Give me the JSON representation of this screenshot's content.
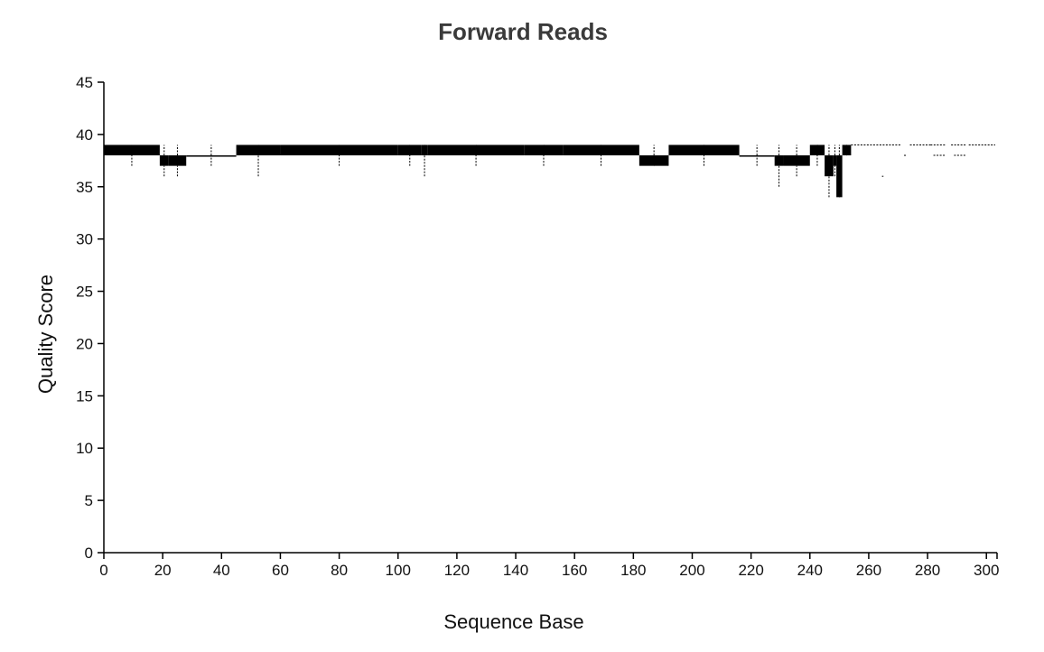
{
  "chart_data": {
    "type": "box",
    "title": "Forward Reads",
    "xlabel": "Sequence Base",
    "ylabel": "Quality Score",
    "xlim": [
      0,
      303
    ],
    "ylim": [
      0,
      45
    ],
    "xticks": [
      0,
      20,
      40,
      60,
      80,
      100,
      120,
      140,
      160,
      180,
      200,
      220,
      240,
      260,
      280,
      300
    ],
    "yticks": [
      0,
      5,
      10,
      15,
      20,
      25,
      30,
      35,
      40,
      45
    ],
    "grid": false,
    "legend": "none",
    "colors": {
      "mark": "#000000",
      "title": "#3a3a3a"
    },
    "series": [
      {
        "x_start": 0,
        "x_end": 19,
        "whisker_low": 37,
        "q1": 38,
        "q3": 39,
        "whisker_high": 39
      },
      {
        "x_start": 19,
        "x_end": 22,
        "whisker_low": 36,
        "q1": 37,
        "q3": 38,
        "whisker_high": 39
      },
      {
        "x_start": 22,
        "x_end": 28,
        "whisker_low": 36,
        "q1": 37,
        "q3": 38,
        "whisker_high": 39
      },
      {
        "x_start": 28,
        "x_end": 45,
        "whisker_low": 37,
        "q1": 38,
        "q3": 38,
        "whisker_high": 39
      },
      {
        "x_start": 45,
        "x_end": 60,
        "whisker_low": 36,
        "q1": 38,
        "q3": 39,
        "whisker_high": 39
      },
      {
        "x_start": 60,
        "x_end": 100,
        "whisker_low": 37,
        "q1": 38,
        "q3": 39,
        "whisker_high": 39
      },
      {
        "x_start": 100,
        "x_end": 108,
        "whisker_low": 37,
        "q1": 38,
        "q3": 39,
        "whisker_high": 39
      },
      {
        "x_start": 108,
        "x_end": 110,
        "whisker_low": 36,
        "q1": 38,
        "q3": 39,
        "whisker_high": 39
      },
      {
        "x_start": 110,
        "x_end": 143,
        "whisker_low": 37,
        "q1": 38,
        "q3": 39,
        "whisker_high": 39
      },
      {
        "x_start": 143,
        "x_end": 156,
        "whisker_low": 37,
        "q1": 38,
        "q3": 39,
        "whisker_high": 39
      },
      {
        "x_start": 156,
        "x_end": 182,
        "whisker_low": 37,
        "q1": 38,
        "q3": 39,
        "whisker_high": 39
      },
      {
        "x_start": 182,
        "x_end": 192,
        "whisker_low": 37,
        "q1": 37,
        "q3": 38,
        "whisker_high": 39
      },
      {
        "x_start": 192,
        "x_end": 216,
        "whisker_low": 37,
        "q1": 38,
        "q3": 39,
        "whisker_high": 39
      },
      {
        "x_start": 216,
        "x_end": 228,
        "whisker_low": 37,
        "q1": 38,
        "q3": 38,
        "whisker_high": 39
      },
      {
        "x_start": 228,
        "x_end": 231,
        "whisker_low": 35,
        "q1": 37,
        "q3": 38,
        "whisker_high": 39
      },
      {
        "x_start": 231,
        "x_end": 240,
        "whisker_low": 36,
        "q1": 37,
        "q3": 38,
        "whisker_high": 39
      },
      {
        "x_start": 240,
        "x_end": 245,
        "whisker_low": 37,
        "q1": 38,
        "q3": 39,
        "whisker_high": 39
      },
      {
        "x_start": 245,
        "x_end": 248,
        "whisker_low": 34,
        "q1": 36,
        "q3": 38,
        "whisker_high": 39
      },
      {
        "x_start": 248,
        "x_end": 249,
        "whisker_low": 36,
        "q1": 37,
        "q3": 38,
        "whisker_high": 39
      },
      {
        "x_start": 249,
        "x_end": 251,
        "whisker_low": 34,
        "q1": 34,
        "q3": 38,
        "whisker_high": 39
      },
      {
        "x_start": 251,
        "x_end": 254,
        "whisker_low": 38,
        "q1": 38,
        "q3": 39,
        "whisker_high": 39
      }
    ],
    "sparse_points": [
      {
        "x_start": 254,
        "x_end": 271,
        "y": 39
      },
      {
        "x_start": 264.5,
        "x_end": 265,
        "y": 36
      },
      {
        "x_start": 272,
        "x_end": 273,
        "y": 38
      },
      {
        "x_start": 274,
        "x_end": 281,
        "y": 39
      },
      {
        "x_start": 281,
        "x_end": 286,
        "y": 39
      },
      {
        "x_start": 282,
        "x_end": 286,
        "y": 38
      },
      {
        "x_start": 288,
        "x_end": 293,
        "y": 39
      },
      {
        "x_start": 289,
        "x_end": 293,
        "y": 38
      },
      {
        "x_start": 294,
        "x_end": 303,
        "y": 39
      }
    ]
  }
}
